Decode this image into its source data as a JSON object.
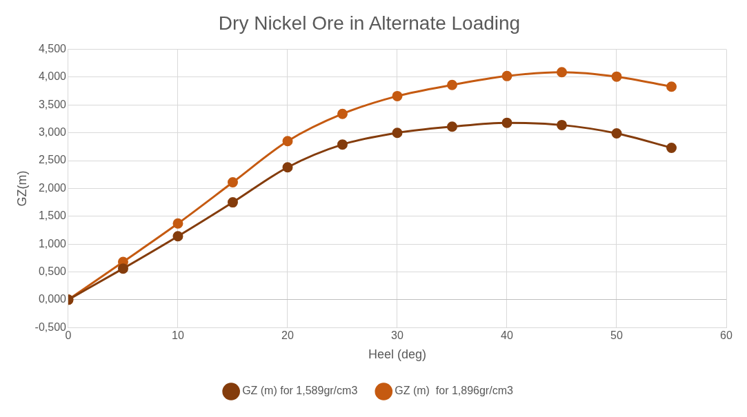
{
  "chart_data": {
    "type": "line",
    "title": "Dry Nickel Ore in Alternate Loading",
    "xlabel": "Heel (deg)",
    "ylabel": "GZ(m)",
    "x": [
      0,
      5,
      10,
      15,
      20,
      25,
      30,
      35,
      40,
      45,
      50,
      55
    ],
    "series": [
      {
        "name": "GZ (m) for 1,589gr/cm3",
        "color": "#843c0c",
        "values": [
          0,
          0.56,
          1.14,
          1.75,
          2.38,
          2.79,
          3.0,
          3.11,
          3.18,
          3.14,
          2.99,
          2.73
        ]
      },
      {
        "name": "GZ (m)  for 1,896gr/cm3",
        "color": "#c55a11",
        "values": [
          0,
          0.68,
          1.37,
          2.11,
          2.85,
          3.34,
          3.66,
          3.86,
          4.02,
          4.09,
          4.01,
          3.83
        ]
      }
    ],
    "xlim": [
      0,
      60
    ],
    "xticks": [
      0,
      10,
      20,
      30,
      40,
      50,
      60
    ],
    "ylim": [
      -0.5,
      4.5
    ],
    "yticks": [
      {
        "value": -0.5,
        "label": "-0,500"
      },
      {
        "value": 0,
        "label": "0,000"
      },
      {
        "value": 0.5,
        "label": "0,500"
      },
      {
        "value": 1,
        "label": "1,000"
      },
      {
        "value": 1.5,
        "label": "1,500"
      },
      {
        "value": 2,
        "label": "2,000"
      },
      {
        "value": 2.5,
        "label": "2,500"
      },
      {
        "value": 3,
        "label": "3,000"
      },
      {
        "value": 3.5,
        "label": "3,500"
      },
      {
        "value": 4,
        "label": "4,000"
      },
      {
        "value": 4.5,
        "label": "4,500"
      }
    ],
    "grid": true,
    "legend": "bottom",
    "marker": "circle",
    "line_style": "solid"
  }
}
